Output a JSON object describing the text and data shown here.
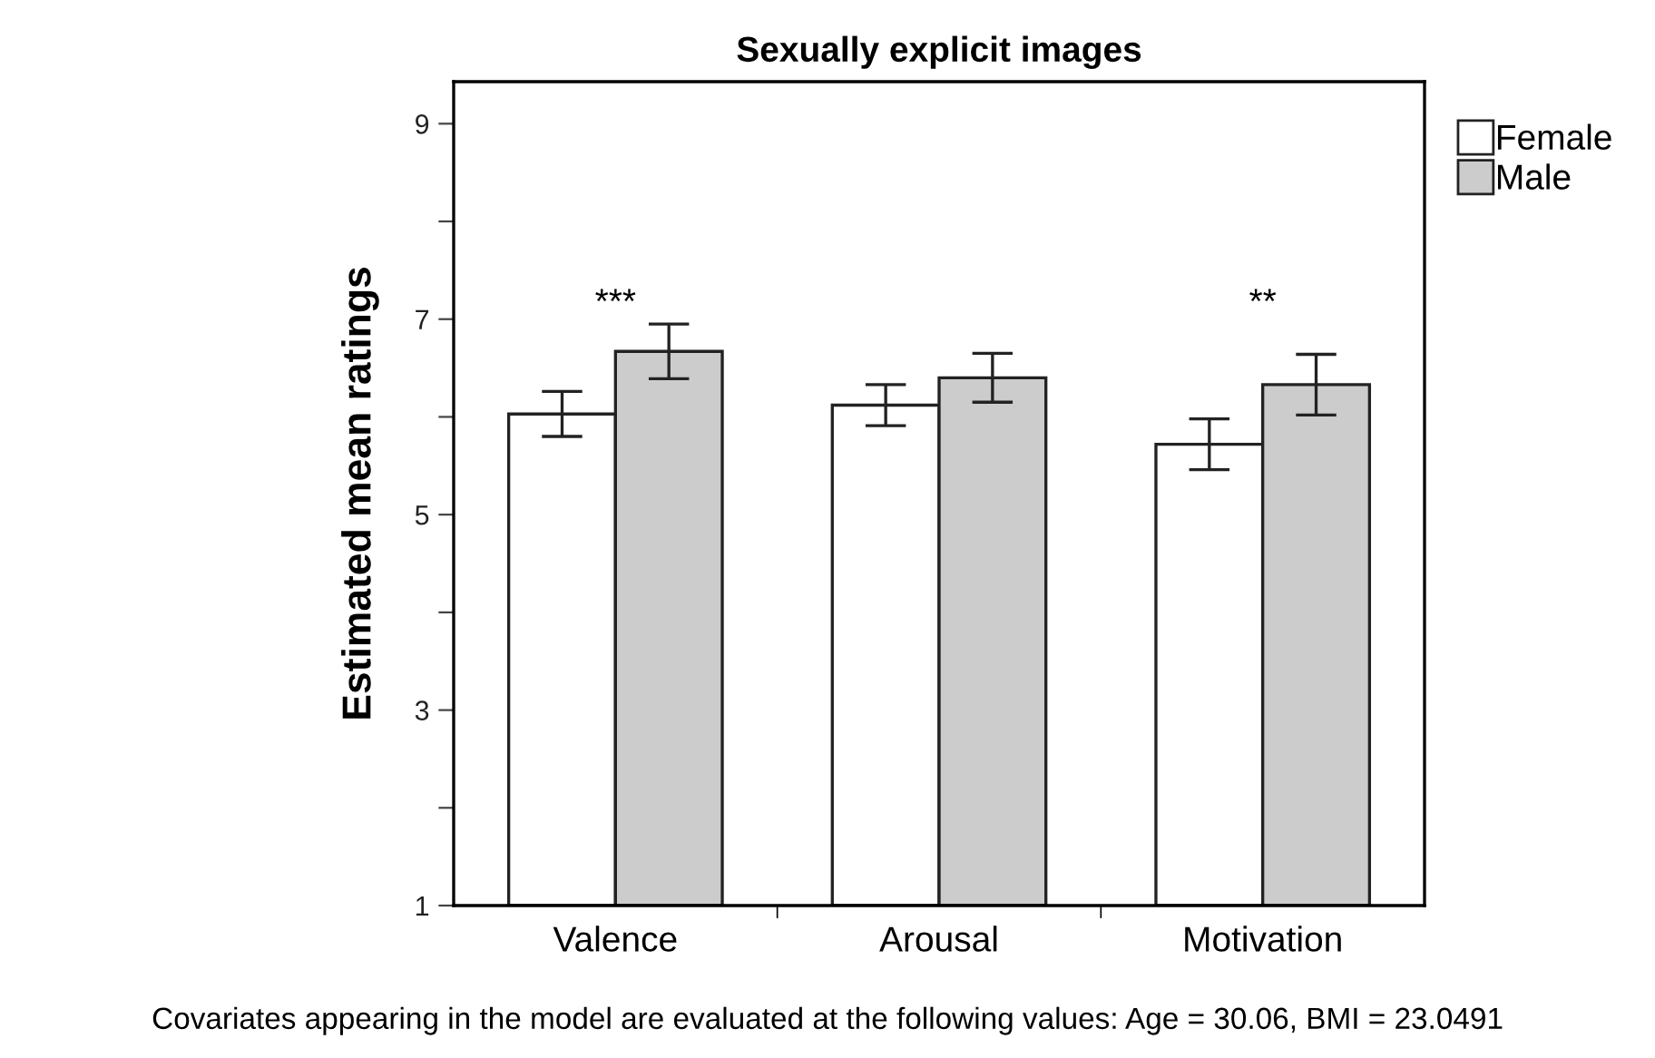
{
  "chart_data": {
    "type": "bar",
    "title": "Sexually explicit images",
    "ylabel": "Estimated mean ratings",
    "categories": [
      "Valence",
      "Arousal",
      "Motivation"
    ],
    "series": [
      {
        "name": "Female",
        "color": "#ffffff",
        "values": [
          6.03,
          6.12,
          5.72
        ],
        "errors": [
          0.23,
          0.21,
          0.26
        ]
      },
      {
        "name": "Male",
        "color": "#cccccc",
        "values": [
          6.67,
          6.4,
          6.33
        ],
        "errors": [
          0.28,
          0.25,
          0.31
        ]
      }
    ],
    "ylim": [
      1,
      9.43
    ],
    "yticks": [
      1,
      {
        "value": 2,
        "label": null
      },
      3,
      {
        "value": 4,
        "label": null
      },
      5,
      {
        "value": 6,
        "label": null
      },
      7,
      {
        "value": 8,
        "label": null
      },
      9
    ],
    "grid": false,
    "legend": "top right",
    "annotations": [
      "***",
      "**",
      "Covariates appearing in the model are evaluated at the following values: Age = 30.06, BMI = 23.0491"
    ]
  }
}
